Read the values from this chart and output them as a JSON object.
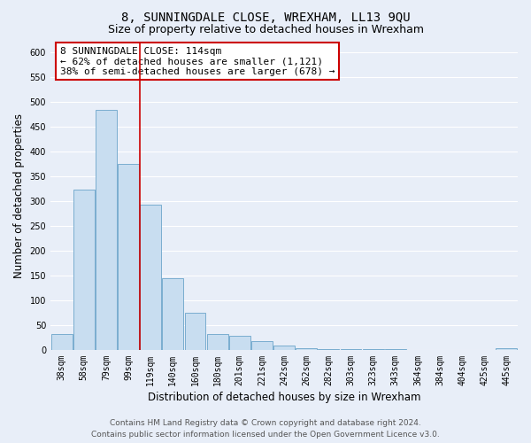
{
  "title": "8, SUNNINGDALE CLOSE, WREXHAM, LL13 9QU",
  "subtitle": "Size of property relative to detached houses in Wrexham",
  "xlabel": "Distribution of detached houses by size in Wrexham",
  "ylabel": "Number of detached properties",
  "bar_labels": [
    "38sqm",
    "58sqm",
    "79sqm",
    "99sqm",
    "119sqm",
    "140sqm",
    "160sqm",
    "180sqm",
    "201sqm",
    "221sqm",
    "242sqm",
    "262sqm",
    "282sqm",
    "303sqm",
    "323sqm",
    "343sqm",
    "364sqm",
    "384sqm",
    "404sqm",
    "425sqm",
    "445sqm"
  ],
  "bar_values": [
    32,
    323,
    483,
    375,
    293,
    145,
    75,
    32,
    29,
    17,
    8,
    3,
    2,
    1,
    1,
    1,
    0,
    0,
    0,
    0,
    3
  ],
  "bar_color_fill": "#c8ddf0",
  "bar_color_edge": "#7aadcf",
  "vline_color": "#cc0000",
  "vline_x_index": 3.5,
  "ylim": [
    0,
    620
  ],
  "yticks": [
    0,
    50,
    100,
    150,
    200,
    250,
    300,
    350,
    400,
    450,
    500,
    550,
    600
  ],
  "annotation_title": "8 SUNNINGDALE CLOSE: 114sqm",
  "annotation_line1": "← 62% of detached houses are smaller (1,121)",
  "annotation_line2": "38% of semi-detached houses are larger (678) →",
  "annotation_box_facecolor": "#ffffff",
  "annotation_box_edgecolor": "#cc0000",
  "footer_line1": "Contains HM Land Registry data © Crown copyright and database right 2024.",
  "footer_line2": "Contains public sector information licensed under the Open Government Licence v3.0.",
  "bg_color": "#e8eef8",
  "plot_bg_color": "#e8eef8",
  "grid_color": "#ffffff",
  "title_fontsize": 10,
  "subtitle_fontsize": 9,
  "axis_label_fontsize": 8.5,
  "tick_fontsize": 7,
  "annotation_fontsize": 8,
  "footer_fontsize": 6.5
}
